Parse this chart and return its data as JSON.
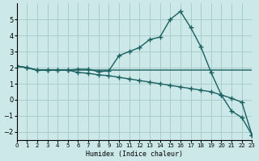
{
  "xlabel": "Humidex (Indice chaleur)",
  "bg_color": "#cce8e8",
  "grid_color": "#aacccc",
  "line_color": "#1a6060",
  "xlim": [
    0,
    23
  ],
  "ylim": [
    -2.5,
    6
  ],
  "yticks": [
    -2,
    -1,
    0,
    1,
    2,
    3,
    4,
    5
  ],
  "xticks": [
    0,
    1,
    2,
    3,
    4,
    5,
    6,
    7,
    8,
    9,
    10,
    11,
    12,
    13,
    14,
    15,
    16,
    17,
    18,
    19,
    20,
    21,
    22,
    23
  ],
  "line1_x": [
    0,
    1,
    2,
    3,
    4,
    5,
    6,
    7,
    8,
    9,
    10,
    11,
    12,
    13,
    14,
    15,
    16,
    17,
    18,
    19,
    20,
    21,
    22,
    23
  ],
  "line1_y": [
    2.1,
    2.0,
    1.85,
    1.85,
    1.85,
    1.85,
    1.9,
    1.9,
    1.75,
    1.8,
    2.75,
    3.0,
    3.25,
    3.75,
    3.9,
    5.0,
    5.5,
    4.5,
    3.3,
    1.7,
    0.3,
    -0.7,
    -1.1,
    -2.2
  ],
  "line2_x": [
    0,
    1,
    2,
    3,
    4,
    5,
    6,
    7,
    8,
    9,
    10,
    11,
    12,
    13,
    14,
    15,
    16,
    17,
    18,
    19,
    20,
    21,
    22,
    23
  ],
  "line2_y": [
    2.1,
    2.0,
    1.85,
    1.85,
    1.85,
    1.85,
    1.85,
    1.85,
    1.85,
    1.85,
    1.85,
    1.85,
    1.85,
    1.85,
    1.85,
    1.85,
    1.85,
    1.85,
    1.85,
    1.85,
    1.85,
    1.85,
    1.85,
    1.85
  ],
  "line3_x": [
    0,
    1,
    2,
    3,
    4,
    5,
    6,
    7,
    8,
    9,
    10,
    11,
    12,
    13,
    14,
    15,
    16,
    17,
    18,
    19,
    20,
    21,
    22,
    23
  ],
  "line3_y": [
    2.1,
    2.0,
    1.85,
    1.85,
    1.85,
    1.85,
    1.7,
    1.65,
    1.55,
    1.5,
    1.4,
    1.3,
    1.2,
    1.1,
    1.0,
    0.9,
    0.8,
    0.7,
    0.6,
    0.5,
    0.3,
    0.1,
    -0.15,
    -2.2
  ]
}
